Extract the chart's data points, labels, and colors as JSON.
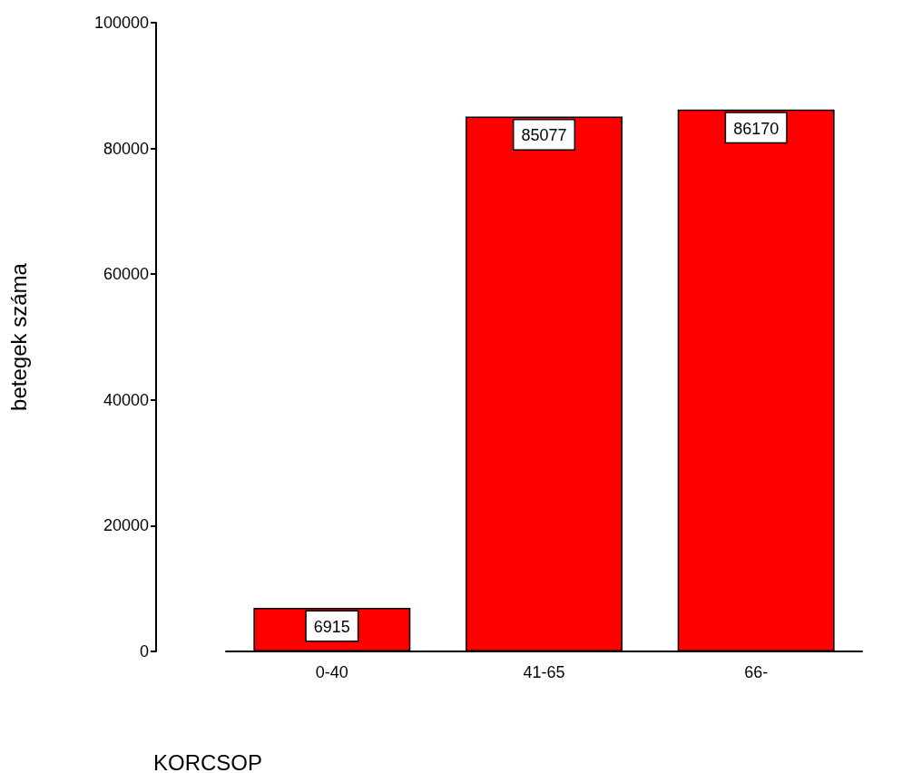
{
  "chart_data": {
    "type": "bar",
    "xlabel": "KORCSOP",
    "ylabel": "betegek száma",
    "categories": [
      "0-40",
      "41-65",
      "66-"
    ],
    "values": [
      6915,
      85077,
      86170
    ],
    "color": "#ff0000",
    "ylim": [
      0,
      100000
    ],
    "yticks": [
      0,
      20000,
      40000,
      60000,
      80000,
      100000
    ],
    "grid": false,
    "data_labels": true
  }
}
